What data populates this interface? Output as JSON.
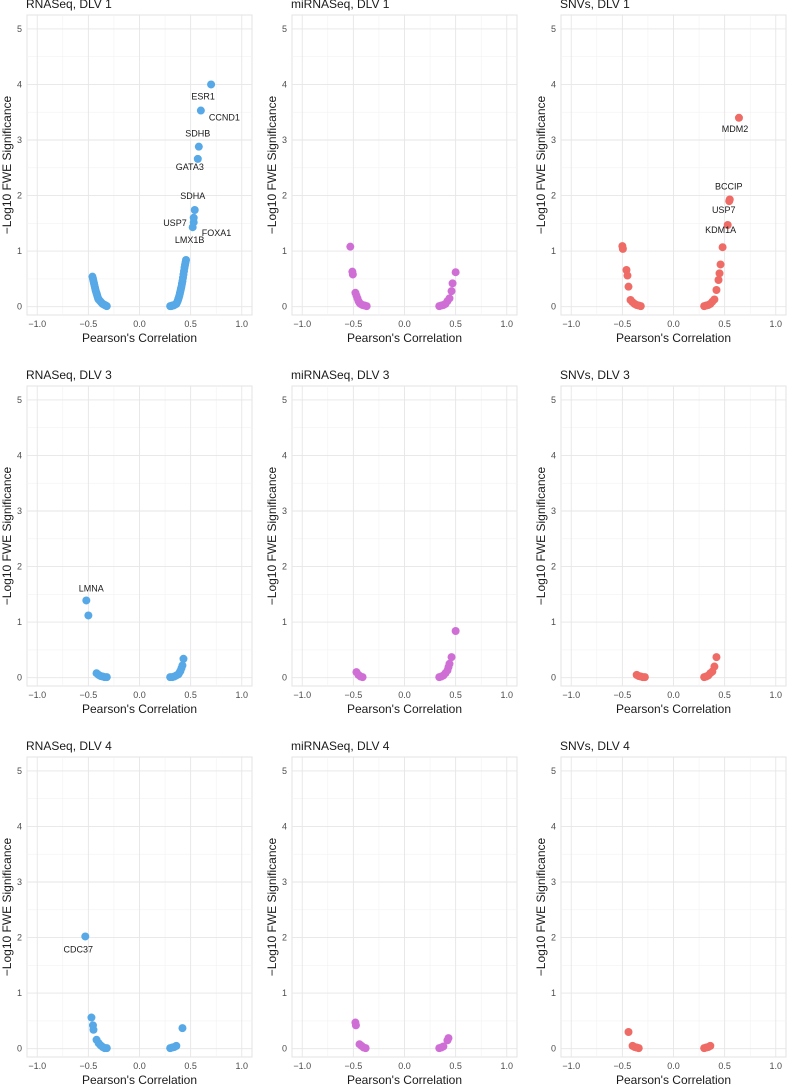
{
  "axes": {
    "xlabel": "Pearson's Correlation",
    "ylabel": "−Log10 FWE Significance",
    "xlim": [
      -1.1,
      1.1
    ],
    "ylim": [
      -0.15,
      5.25
    ],
    "xticks": [
      -1.0,
      -0.5,
      0.0,
      0.5,
      1.0
    ],
    "xtick_labels": [
      "−1.0",
      "−0.5",
      "0.0",
      "0.5",
      "1.0"
    ],
    "yticks": [
      0,
      1,
      2,
      3,
      4,
      5
    ],
    "ytick_labels": [
      "0",
      "1",
      "2",
      "3",
      "4",
      "5"
    ]
  },
  "colors": {
    "RNASeq": "#56a8e6",
    "miRNASeq": "#cf6fd6",
    "SNVs": "#ee6b66"
  },
  "chart_data": [
    {
      "type": "scatter",
      "title": "RNASeq, DLV 1",
      "series": "RNASeq",
      "points": [
        [
          -0.46,
          0.54
        ],
        [
          -0.455,
          0.5
        ],
        [
          -0.45,
          0.46
        ],
        [
          -0.445,
          0.42
        ],
        [
          -0.44,
          0.38
        ],
        [
          -0.435,
          0.34
        ],
        [
          -0.43,
          0.3
        ],
        [
          -0.425,
          0.27
        ],
        [
          -0.42,
          0.24
        ],
        [
          -0.415,
          0.21
        ],
        [
          -0.41,
          0.18
        ],
        [
          -0.405,
          0.15
        ],
        [
          -0.4,
          0.13
        ],
        [
          -0.39,
          0.11
        ],
        [
          -0.38,
          0.09
        ],
        [
          -0.37,
          0.07
        ],
        [
          -0.36,
          0.05
        ],
        [
          -0.35,
          0.04
        ],
        [
          -0.34,
          0.03
        ],
        [
          -0.33,
          0.02
        ],
        [
          -0.32,
          0.01
        ],
        [
          0.3,
          0.01
        ],
        [
          0.31,
          0.01
        ],
        [
          0.32,
          0.02
        ],
        [
          0.33,
          0.02
        ],
        [
          0.34,
          0.03
        ],
        [
          0.35,
          0.04
        ],
        [
          0.36,
          0.05
        ],
        [
          0.365,
          0.07
        ],
        [
          0.37,
          0.09
        ],
        [
          0.375,
          0.11
        ],
        [
          0.38,
          0.14
        ],
        [
          0.385,
          0.17
        ],
        [
          0.39,
          0.2
        ],
        [
          0.395,
          0.24
        ],
        [
          0.4,
          0.28
        ],
        [
          0.405,
          0.32
        ],
        [
          0.41,
          0.36
        ],
        [
          0.415,
          0.41
        ],
        [
          0.42,
          0.46
        ],
        [
          0.425,
          0.52
        ],
        [
          0.43,
          0.58
        ],
        [
          0.435,
          0.64
        ],
        [
          0.44,
          0.7
        ],
        [
          0.445,
          0.75
        ],
        [
          0.45,
          0.8
        ],
        [
          0.455,
          0.84
        ],
        [
          0.7,
          4.0
        ],
        [
          0.6,
          3.53
        ],
        [
          0.58,
          2.88
        ],
        [
          0.57,
          2.66
        ],
        [
          0.54,
          1.74
        ],
        [
          0.53,
          1.6
        ],
        [
          0.53,
          1.52
        ],
        [
          0.52,
          1.43
        ]
      ],
      "labels": [
        {
          "text": "ESR1",
          "x": 0.7,
          "y": 4.0
        },
        {
          "text": "CCND1",
          "x": 0.6,
          "y": 3.53
        },
        {
          "text": "SDHB",
          "x": 0.58,
          "y": 2.88
        },
        {
          "text": "GATA3",
          "x": 0.57,
          "y": 2.66
        },
        {
          "text": "SDHA",
          "x": 0.54,
          "y": 1.74
        },
        {
          "text": "USP7",
          "x": 0.53,
          "y": 1.6
        },
        {
          "text": "FOXA1",
          "x": 0.53,
          "y": 1.52
        },
        {
          "text": "LMX1B",
          "x": 0.52,
          "y": 1.43
        }
      ]
    },
    {
      "type": "scatter",
      "title": "miRNASeq, DLV 1",
      "series": "miRNASeq",
      "points": [
        [
          -0.53,
          1.08
        ],
        [
          -0.51,
          0.63
        ],
        [
          -0.505,
          0.58
        ],
        [
          -0.48,
          0.25
        ],
        [
          -0.47,
          0.2
        ],
        [
          -0.46,
          0.15
        ],
        [
          -0.45,
          0.1
        ],
        [
          -0.44,
          0.07
        ],
        [
          -0.43,
          0.05
        ],
        [
          -0.41,
          0.03
        ],
        [
          -0.39,
          0.02
        ],
        [
          -0.37,
          0.01
        ],
        [
          0.34,
          0.01
        ],
        [
          0.36,
          0.02
        ],
        [
          0.38,
          0.03
        ],
        [
          0.4,
          0.05
        ],
        [
          0.42,
          0.1
        ],
        [
          0.44,
          0.15
        ],
        [
          0.46,
          0.28
        ],
        [
          0.47,
          0.42
        ],
        [
          0.5,
          0.62
        ]
      ],
      "labels": []
    },
    {
      "type": "scatter",
      "title": "SNVs, DLV 1",
      "series": "SNVs",
      "points": [
        [
          -0.5,
          1.09
        ],
        [
          -0.495,
          1.04
        ],
        [
          -0.46,
          0.66
        ],
        [
          -0.45,
          0.56
        ],
        [
          -0.44,
          0.36
        ],
        [
          -0.42,
          0.12
        ],
        [
          -0.4,
          0.08
        ],
        [
          -0.38,
          0.05
        ],
        [
          -0.36,
          0.03
        ],
        [
          -0.34,
          0.02
        ],
        [
          -0.32,
          0.01
        ],
        [
          0.3,
          0.01
        ],
        [
          0.32,
          0.02
        ],
        [
          0.34,
          0.03
        ],
        [
          0.36,
          0.05
        ],
        [
          0.38,
          0.09
        ],
        [
          0.4,
          0.13
        ],
        [
          0.42,
          0.3
        ],
        [
          0.44,
          0.48
        ],
        [
          0.45,
          0.6
        ],
        [
          0.46,
          0.76
        ],
        [
          0.64,
          3.4
        ],
        [
          0.55,
          1.93
        ],
        [
          0.545,
          1.9
        ],
        [
          0.53,
          1.47
        ],
        [
          0.48,
          1.07
        ]
      ],
      "labels": [
        {
          "text": "MDM2",
          "x": 0.64,
          "y": 3.4
        },
        {
          "text": "BCCIP",
          "x": 0.55,
          "y": 1.93
        },
        {
          "text": "USP7",
          "x": 0.53,
          "y": 1.47
        },
        {
          "text": "KDM1A",
          "x": 0.48,
          "y": 1.07
        }
      ]
    },
    {
      "type": "scatter",
      "title": "RNASeq, DLV 3",
      "series": "RNASeq",
      "points": [
        [
          -0.52,
          1.39
        ],
        [
          -0.5,
          1.12
        ],
        [
          -0.42,
          0.08
        ],
        [
          -0.4,
          0.05
        ],
        [
          -0.38,
          0.03
        ],
        [
          -0.36,
          0.02
        ],
        [
          -0.34,
          0.01
        ],
        [
          -0.32,
          0.01
        ],
        [
          0.3,
          0.01
        ],
        [
          0.32,
          0.01
        ],
        [
          0.34,
          0.02
        ],
        [
          0.36,
          0.04
        ],
        [
          0.38,
          0.06
        ],
        [
          0.39,
          0.09
        ],
        [
          0.4,
          0.12
        ],
        [
          0.41,
          0.17
        ],
        [
          0.42,
          0.22
        ],
        [
          0.43,
          0.34
        ]
      ],
      "labels": [
        {
          "text": "LMNA",
          "x": -0.52,
          "y": 1.39
        }
      ]
    },
    {
      "type": "scatter",
      "title": "miRNASeq, DLV 3",
      "series": "miRNASeq",
      "points": [
        [
          -0.47,
          0.1
        ],
        [
          -0.45,
          0.05
        ],
        [
          -0.43,
          0.02
        ],
        [
          -0.41,
          0.01
        ],
        [
          0.34,
          0.01
        ],
        [
          0.36,
          0.02
        ],
        [
          0.38,
          0.04
        ],
        [
          0.4,
          0.08
        ],
        [
          0.42,
          0.13
        ],
        [
          0.43,
          0.19
        ],
        [
          0.44,
          0.25
        ],
        [
          0.46,
          0.37
        ],
        [
          0.5,
          0.84
        ]
      ],
      "labels": []
    },
    {
      "type": "scatter",
      "title": "SNVs, DLV 3",
      "series": "SNVs",
      "points": [
        [
          -0.36,
          0.05
        ],
        [
          -0.34,
          0.03
        ],
        [
          -0.32,
          0.02
        ],
        [
          -0.3,
          0.01
        ],
        [
          -0.28,
          0.01
        ],
        [
          0.3,
          0.01
        ],
        [
          0.32,
          0.02
        ],
        [
          0.34,
          0.04
        ],
        [
          0.36,
          0.08
        ],
        [
          0.38,
          0.11
        ],
        [
          0.4,
          0.2
        ],
        [
          0.42,
          0.37
        ]
      ],
      "labels": []
    },
    {
      "type": "scatter",
      "title": "RNASeq, DLV 4",
      "series": "RNASeq",
      "points": [
        [
          -0.53,
          2.02
        ],
        [
          -0.47,
          0.56
        ],
        [
          -0.455,
          0.42
        ],
        [
          -0.45,
          0.34
        ],
        [
          -0.42,
          0.16
        ],
        [
          -0.4,
          0.1
        ],
        [
          -0.38,
          0.06
        ],
        [
          -0.36,
          0.03
        ],
        [
          -0.34,
          0.01
        ],
        [
          -0.32,
          0.01
        ],
        [
          0.3,
          0.01
        ],
        [
          0.32,
          0.02
        ],
        [
          0.34,
          0.03
        ],
        [
          0.36,
          0.05
        ],
        [
          0.42,
          0.37
        ]
      ],
      "labels": [
        {
          "text": "CDC37",
          "x": -0.53,
          "y": 2.02
        }
      ]
    },
    {
      "type": "scatter",
      "title": "miRNASeq, DLV 4",
      "series": "miRNASeq",
      "points": [
        [
          -0.48,
          0.47
        ],
        [
          -0.475,
          0.42
        ],
        [
          -0.44,
          0.08
        ],
        [
          -0.42,
          0.05
        ],
        [
          -0.4,
          0.02
        ],
        [
          -0.38,
          0.01
        ],
        [
          0.34,
          0.01
        ],
        [
          0.36,
          0.02
        ],
        [
          0.38,
          0.04
        ],
        [
          0.42,
          0.15
        ],
        [
          0.43,
          0.19
        ]
      ],
      "labels": []
    },
    {
      "type": "scatter",
      "title": "SNVs, DLV 4",
      "series": "SNVs",
      "points": [
        [
          -0.44,
          0.3
        ],
        [
          -0.4,
          0.05
        ],
        [
          -0.38,
          0.03
        ],
        [
          -0.36,
          0.02
        ],
        [
          -0.34,
          0.01
        ],
        [
          0.3,
          0.01
        ],
        [
          0.32,
          0.02
        ],
        [
          0.34,
          0.03
        ],
        [
          0.36,
          0.05
        ]
      ],
      "labels": []
    }
  ]
}
